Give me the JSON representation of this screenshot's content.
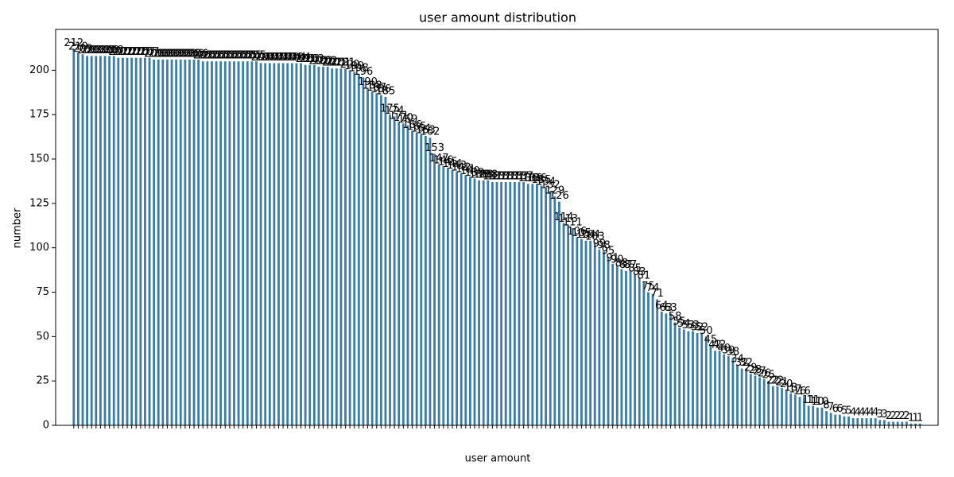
{
  "chart_data": {
    "type": "bar",
    "title": "user amount distribution",
    "x_label": "user amount",
    "y_label": "number",
    "color": "#3a7ca5",
    "ylim": [
      0,
      223
    ],
    "yticks": [
      0,
      25,
      50,
      75,
      100,
      125,
      150,
      175,
      200
    ],
    "values": [
      212,
      210,
      209,
      208,
      208,
      208,
      208,
      208,
      208,
      208,
      207,
      207,
      207,
      207,
      207,
      207,
      207,
      207,
      206,
      206,
      206,
      206,
      206,
      206,
      206,
      206,
      206,
      206,
      206,
      205,
      205,
      205,
      205,
      205,
      205,
      205,
      205,
      205,
      205,
      205,
      205,
      205,
      204,
      204,
      204,
      204,
      204,
      204,
      204,
      204,
      204,
      204,
      203,
      203,
      203,
      202,
      202,
      202,
      201,
      201,
      201,
      201,
      200,
      199,
      198,
      196,
      190,
      188,
      187,
      186,
      185,
      175,
      174,
      171,
      170,
      169,
      166,
      165,
      164,
      163,
      162,
      153,
      147,
      146,
      145,
      144,
      143,
      142,
      141,
      140,
      139,
      138,
      138,
      138,
      137,
      137,
      137,
      137,
      137,
      137,
      137,
      137,
      136,
      136,
      136,
      135,
      134,
      132,
      129,
      126,
      114,
      113,
      111,
      106,
      105,
      104,
      104,
      103,
      99,
      98,
      95,
      91,
      90,
      88,
      87,
      87,
      85,
      83,
      81,
      75,
      74,
      71,
      64,
      63,
      63,
      58,
      55,
      54,
      53,
      53,
      52,
      52,
      50,
      45,
      42,
      42,
      40,
      39,
      38,
      34,
      32,
      32,
      29,
      28,
      27,
      26,
      25,
      22,
      22,
      21,
      20,
      18,
      17,
      16,
      16,
      11,
      11,
      10,
      10,
      8,
      7,
      6,
      6,
      5,
      5,
      4,
      4,
      4,
      4,
      4,
      4,
      3,
      3,
      2,
      2,
      2,
      2,
      2,
      1,
      1,
      1
    ]
  }
}
